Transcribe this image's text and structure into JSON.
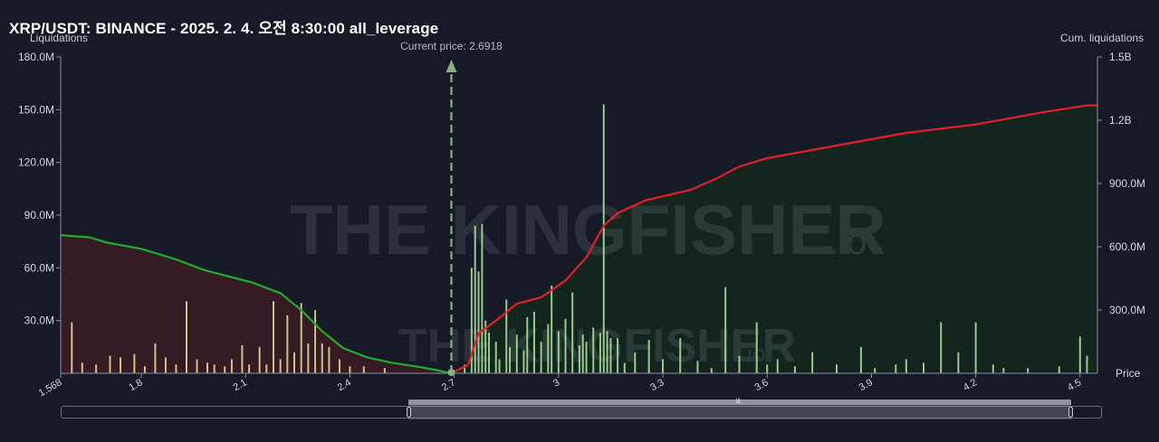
{
  "title": "XRP/USDT: BINANCE - 2025. 2. 4. 오전 8:30:00 all_leverage",
  "watermark": "THE KINGFISHER",
  "watermark_suffix": ".io",
  "colors": {
    "background": "#161a26",
    "long_cum_line": "#1fae2b",
    "short_cum_line": "#e3202a",
    "long_fill": "#3a1c25",
    "short_fill": "#14271f",
    "bar_yellow": "#e9e29a",
    "bar_green": "#aee8a0",
    "price_marker": "#86b17d"
  },
  "slider": {
    "grip": "|||"
  },
  "chart_data": {
    "type": "bar",
    "left_axis_label": "Liquidations",
    "right_axis_label": "Cum. liquidations",
    "x_axis_label": "Price",
    "current_price_label": "Current price: 2.6918",
    "current_price": 2.6918,
    "xlim": [
      1.568,
      4.55
    ],
    "ylim_left": [
      0,
      180000000
    ],
    "ylim_right": [
      0,
      1500000000
    ],
    "y_ticks_left": [
      "30.0M",
      "60.0M",
      "90.0M",
      "120.0M",
      "150.0M",
      "180.0M"
    ],
    "y_ticks_left_values": [
      30000000,
      60000000,
      90000000,
      120000000,
      150000000,
      180000000
    ],
    "y_ticks_right": [
      "300.0M",
      "600.0M",
      "900.0M",
      "1.2B",
      "1.5B"
    ],
    "y_ticks_right_values": [
      300000000,
      600000000,
      900000000,
      1200000000,
      1500000000
    ],
    "x_ticks": [
      "1.568",
      "1.8",
      "2.1",
      "2.4",
      "2.7",
      "3",
      "3.3",
      "3.6",
      "3.9",
      "4.2",
      "4.5"
    ],
    "x_ticks_values": [
      1.568,
      1.8,
      2.1,
      2.4,
      2.7,
      3.0,
      3.3,
      3.6,
      3.9,
      4.2,
      4.5
    ],
    "grid": false,
    "series": [
      {
        "name": "Liquidations",
        "kind": "bars",
        "points": [
          [
            1.6,
            29
          ],
          [
            1.63,
            6
          ],
          [
            1.67,
            5
          ],
          [
            1.71,
            10
          ],
          [
            1.74,
            9
          ],
          [
            1.78,
            11
          ],
          [
            1.81,
            4
          ],
          [
            1.84,
            17
          ],
          [
            1.87,
            9
          ],
          [
            1.9,
            5
          ],
          [
            1.93,
            41
          ],
          [
            1.96,
            8
          ],
          [
            1.99,
            6
          ],
          [
            2.01,
            5
          ],
          [
            2.04,
            4
          ],
          [
            2.06,
            8
          ],
          [
            2.09,
            16
          ],
          [
            2.11,
            5
          ],
          [
            2.14,
            15
          ],
          [
            2.16,
            5
          ],
          [
            2.18,
            41
          ],
          [
            2.2,
            8
          ],
          [
            2.22,
            33
          ],
          [
            2.24,
            12
          ],
          [
            2.26,
            40
          ],
          [
            2.28,
            17
          ],
          [
            2.3,
            36
          ],
          [
            2.32,
            17
          ],
          [
            2.34,
            15
          ],
          [
            2.37,
            8
          ],
          [
            2.4,
            4
          ],
          [
            2.44,
            4
          ],
          [
            2.5,
            3
          ],
          [
            2.73,
            5
          ],
          [
            2.75,
            60
          ],
          [
            2.76,
            84
          ],
          [
            2.77,
            58
          ],
          [
            2.78,
            85
          ],
          [
            2.79,
            30
          ],
          [
            2.8,
            23
          ],
          [
            2.82,
            18
          ],
          [
            2.83,
            8
          ],
          [
            2.85,
            42
          ],
          [
            2.86,
            15
          ],
          [
            2.88,
            22
          ],
          [
            2.9,
            13
          ],
          [
            2.91,
            32
          ],
          [
            2.93,
            35
          ],
          [
            2.95,
            18
          ],
          [
            2.97,
            28
          ],
          [
            2.98,
            50
          ],
          [
            3.0,
            24
          ],
          [
            3.02,
            31
          ],
          [
            3.04,
            46
          ],
          [
            3.06,
            16
          ],
          [
            3.07,
            22
          ],
          [
            3.08,
            18
          ],
          [
            3.1,
            26
          ],
          [
            3.12,
            23
          ],
          [
            3.13,
            153
          ],
          [
            3.14,
            24
          ],
          [
            3.15,
            20
          ],
          [
            3.17,
            20
          ],
          [
            3.19,
            6
          ],
          [
            3.22,
            12
          ],
          [
            3.26,
            19
          ],
          [
            3.3,
            8
          ],
          [
            3.35,
            20
          ],
          [
            3.4,
            7
          ],
          [
            3.44,
            3
          ],
          [
            3.48,
            49
          ],
          [
            3.52,
            10
          ],
          [
            3.57,
            29
          ],
          [
            3.6,
            5
          ],
          [
            3.63,
            8
          ],
          [
            3.68,
            4
          ],
          [
            3.73,
            12
          ],
          [
            3.8,
            5
          ],
          [
            3.87,
            15
          ],
          [
            3.91,
            3
          ],
          [
            3.97,
            5
          ],
          [
            4.0,
            8
          ],
          [
            4.05,
            6
          ],
          [
            4.1,
            29
          ],
          [
            4.15,
            12
          ],
          [
            4.2,
            29
          ],
          [
            4.25,
            5
          ],
          [
            4.28,
            3
          ],
          [
            4.35,
            3
          ],
          [
            4.44,
            4
          ],
          [
            4.5,
            21
          ],
          [
            4.52,
            10
          ]
        ]
      },
      {
        "name": "Cum. liquidations (longs)",
        "kind": "line",
        "points": [
          [
            1.568,
            0.655
          ],
          [
            1.65,
            0.645
          ],
          [
            1.7,
            0.62
          ],
          [
            1.8,
            0.59
          ],
          [
            1.9,
            0.54
          ],
          [
            1.98,
            0.49
          ],
          [
            2.05,
            0.46
          ],
          [
            2.12,
            0.43
          ],
          [
            2.2,
            0.38
          ],
          [
            2.26,
            0.3
          ],
          [
            2.32,
            0.2
          ],
          [
            2.38,
            0.12
          ],
          [
            2.45,
            0.075
          ],
          [
            2.52,
            0.05
          ],
          [
            2.6,
            0.03
          ],
          [
            2.65,
            0.015
          ],
          [
            2.69,
            0.0
          ]
        ]
      },
      {
        "name": "Cum. liquidations (shorts)",
        "kind": "line",
        "points": [
          [
            2.6918,
            0.0
          ],
          [
            2.74,
            0.04
          ],
          [
            2.77,
            0.19
          ],
          [
            2.82,
            0.25
          ],
          [
            2.88,
            0.33
          ],
          [
            2.95,
            0.36
          ],
          [
            3.02,
            0.44
          ],
          [
            3.08,
            0.55
          ],
          [
            3.13,
            0.7
          ],
          [
            3.17,
            0.76
          ],
          [
            3.25,
            0.82
          ],
          [
            3.38,
            0.87
          ],
          [
            3.45,
            0.92
          ],
          [
            3.52,
            0.98
          ],
          [
            3.6,
            1.02
          ],
          [
            3.8,
            1.08
          ],
          [
            4.0,
            1.14
          ],
          [
            4.2,
            1.18
          ],
          [
            4.4,
            1.24
          ],
          [
            4.52,
            1.27
          ],
          [
            4.55,
            1.27
          ]
        ]
      }
    ]
  }
}
